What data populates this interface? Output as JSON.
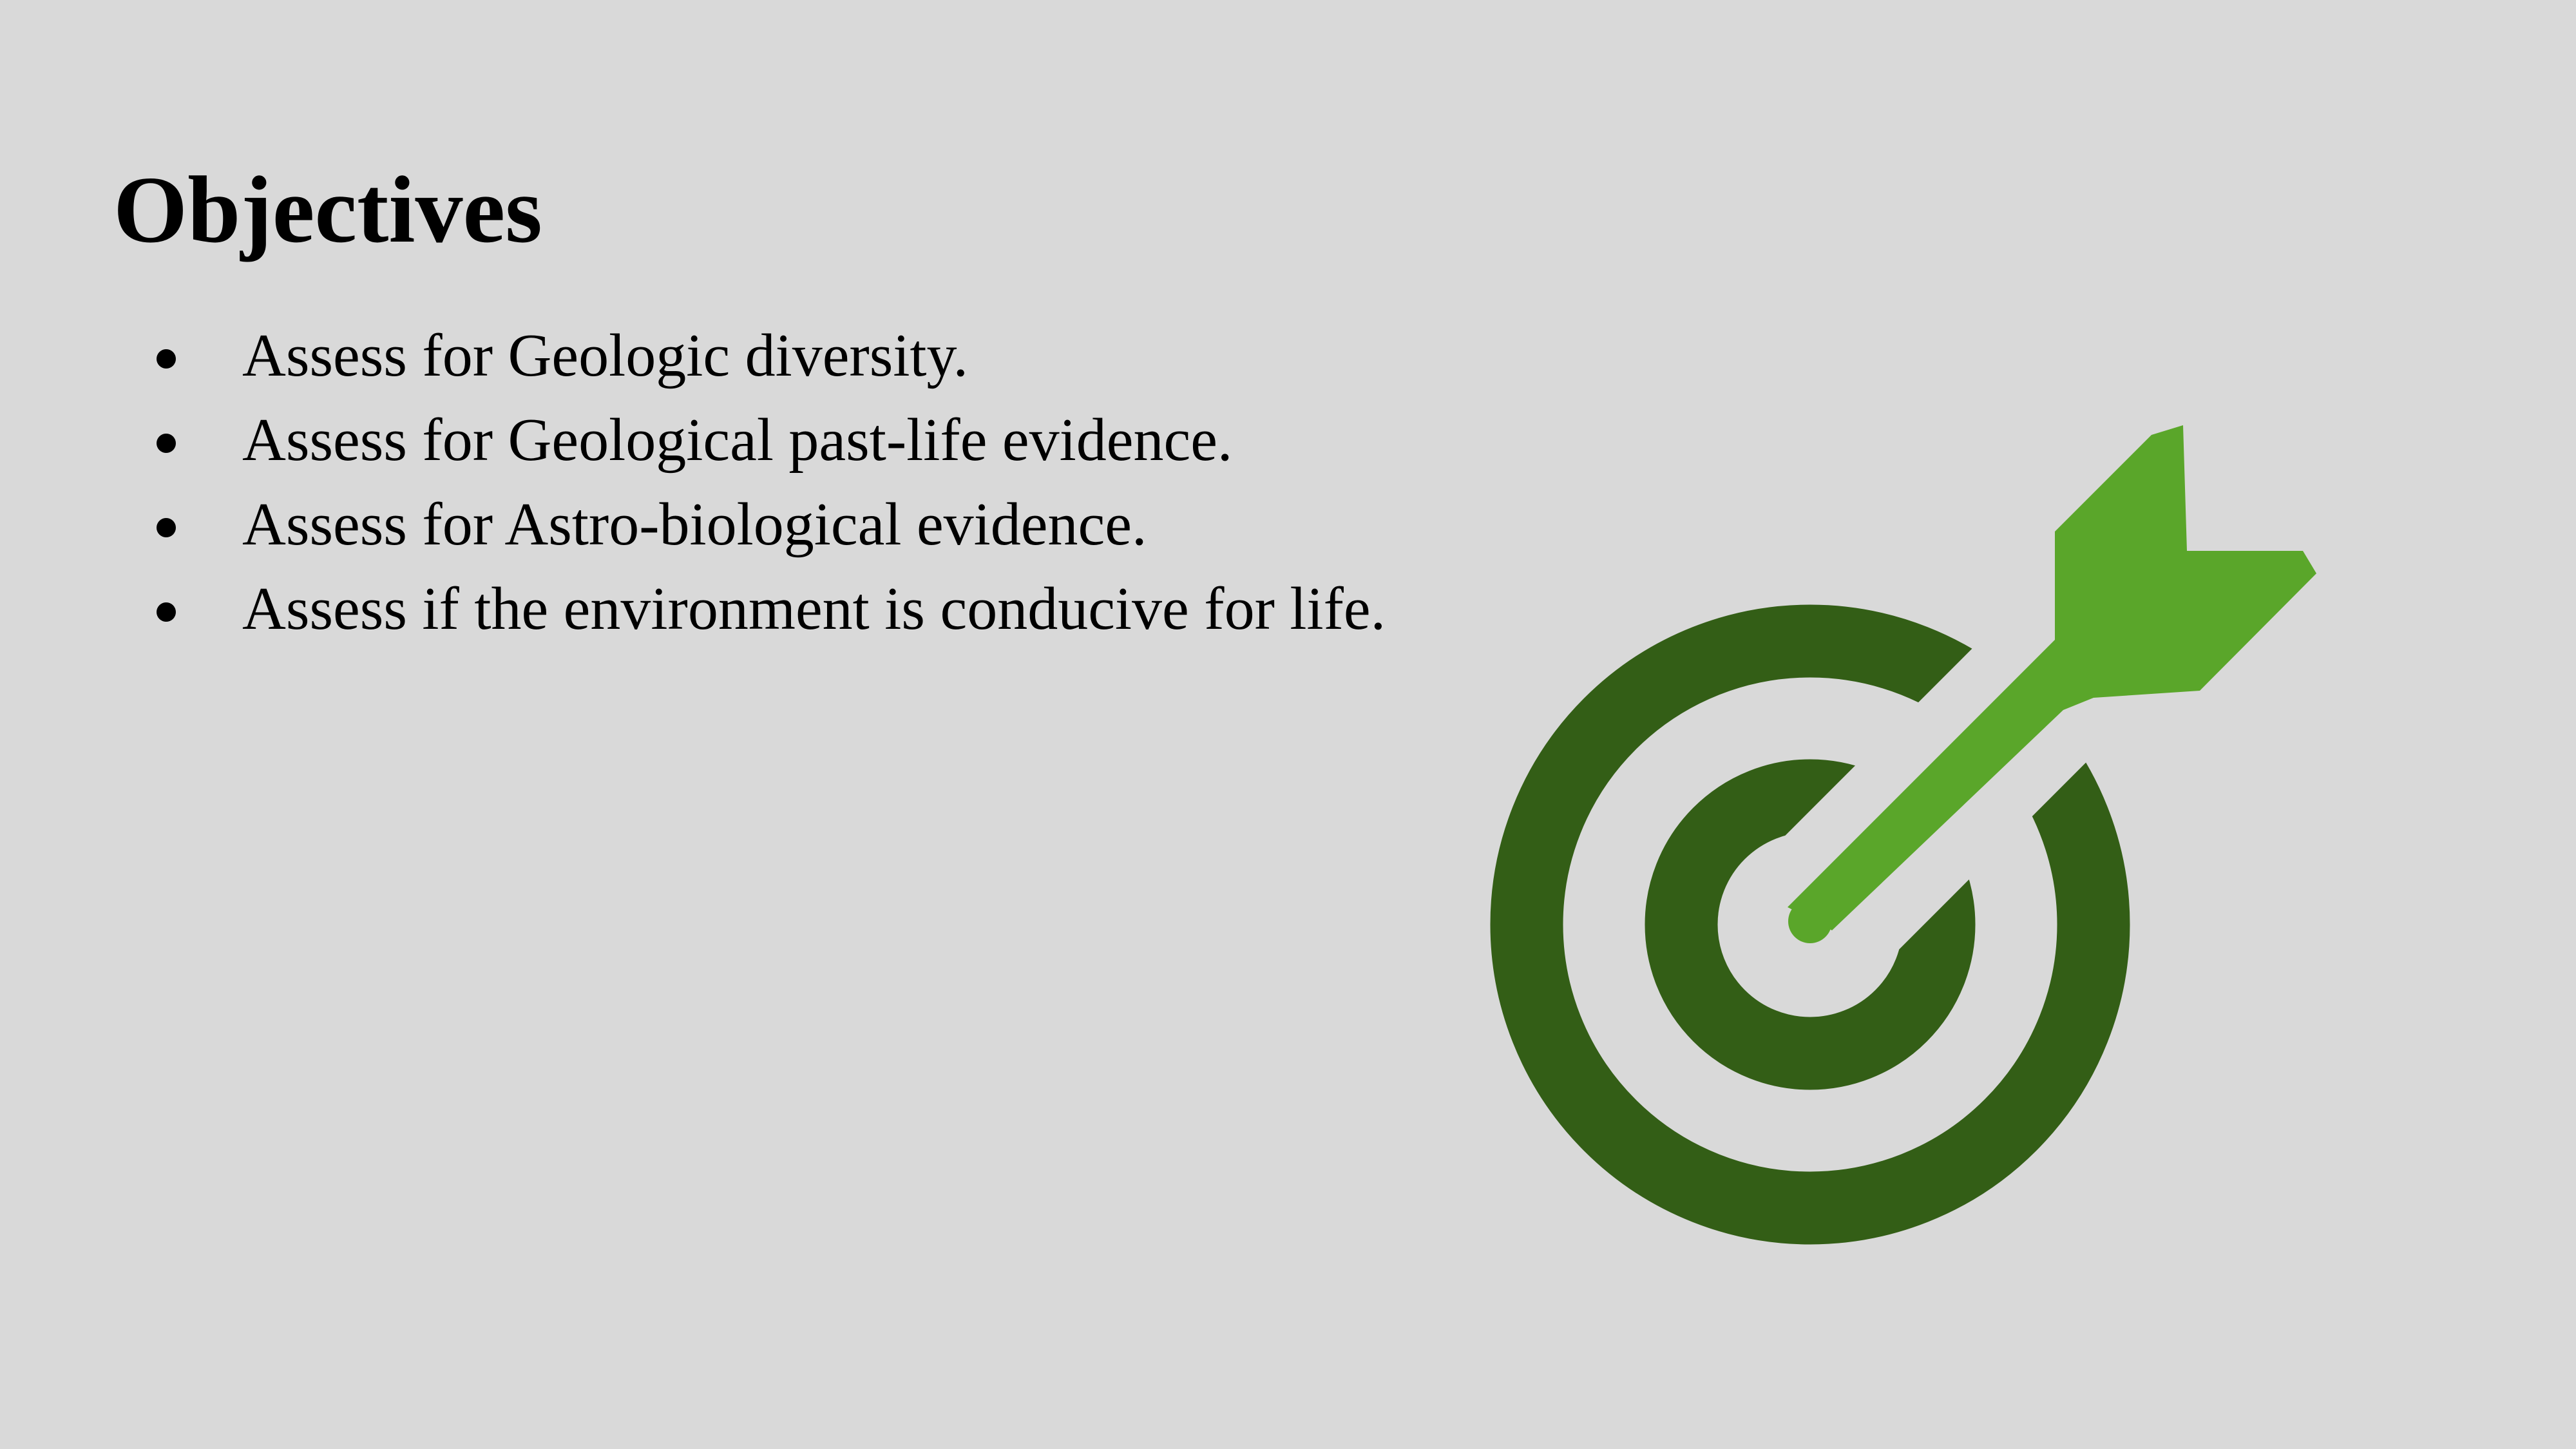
{
  "slide": {
    "title": "Objectives",
    "bullets": [
      "Assess for Geologic diversity.",
      "Assess for Geological past-life evidence.",
      "Assess for Astro-biological evidence.",
      "Assess if the environment is conducive for life."
    ]
  },
  "graphic": {
    "icon": "target-with-arrow-icon",
    "colors": {
      "target": "#335e16",
      "arrow": "#5aa62a"
    }
  }
}
